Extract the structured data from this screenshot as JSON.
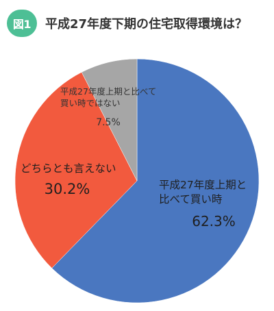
{
  "header": {
    "badge": "図1",
    "title": "平成27年度下期の住宅取得環境は？",
    "badge_color": "#4dbf95"
  },
  "chart_data": {
    "type": "pie",
    "title": "平成27年度下期の住宅取得環境は？",
    "slices": [
      {
        "label_lines": [
          "平成27年度上期と",
          "比べて買い時"
        ],
        "value": 62.3,
        "value_label": "62.3%",
        "color": "#4a77c0"
      },
      {
        "label_lines": [
          "どちらとも言えない"
        ],
        "value": 30.2,
        "value_label": "30.2%",
        "color": "#f25a3e"
      },
      {
        "label_lines": [
          "平成27年度上期と比べて",
          "買い時ではない"
        ],
        "value": 7.5,
        "value_label": "7.5%",
        "color": "#a6a6a6"
      }
    ],
    "start_angle": "12 o'clock",
    "direction": "clockwise",
    "legend": "none"
  }
}
